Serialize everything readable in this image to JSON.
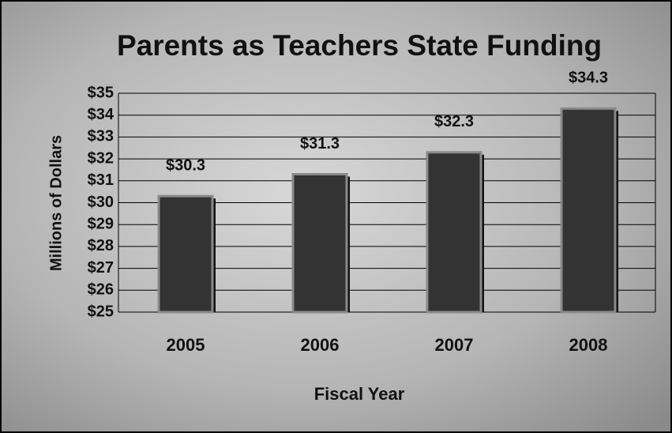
{
  "chart_data": {
    "type": "bar",
    "title": "Parents as Teachers State Funding",
    "x_label": "Fiscal Year",
    "y_label": "Millions of Dollars",
    "categories": [
      "2005",
      "2006",
      "2007",
      "2008"
    ],
    "values": [
      30.3,
      31.3,
      32.3,
      34.3
    ],
    "value_labels": [
      "$30.3",
      "$31.3",
      "$32.3",
      "$34.3"
    ],
    "color": "#333333",
    "ylim": [
      25,
      35
    ],
    "yticks": [
      {
        "value": 25,
        "label": "$25"
      },
      {
        "value": 26,
        "label": "$26"
      },
      {
        "value": 27,
        "label": "$27"
      },
      {
        "value": 28,
        "label": "$28"
      },
      {
        "value": 29,
        "label": "$29"
      },
      {
        "value": 30,
        "label": "$30"
      },
      {
        "value": 31,
        "label": "$31"
      },
      {
        "value": 32,
        "label": "$32"
      },
      {
        "value": 33,
        "label": "$33"
      },
      {
        "value": 34,
        "label": "$34"
      },
      {
        "value": 35,
        "label": "$35"
      }
    ],
    "grid": true
  }
}
